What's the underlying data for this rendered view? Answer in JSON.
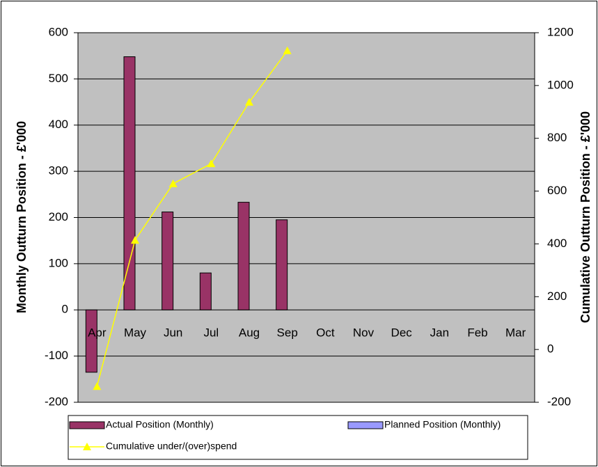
{
  "chart_data": {
    "type": "bar",
    "categories": [
      "Apr",
      "May",
      "Jun",
      "Jul",
      "Aug",
      "Sep",
      "Oct",
      "Nov",
      "Dec",
      "Jan",
      "Feb",
      "Mar"
    ],
    "y_label": "Monthly Outturn Position - £'000",
    "y2_label": "Cumulative Outturn Position - £'000",
    "ylim": [
      -200,
      600
    ],
    "yticks": [
      -200,
      -100,
      0,
      100,
      200,
      300,
      400,
      500,
      600
    ],
    "y2lim": [
      -200,
      1200
    ],
    "y2ticks": [
      -200,
      0,
      200,
      400,
      600,
      800,
      1000,
      1200
    ],
    "grid": true,
    "legend": "bottom",
    "series": [
      {
        "name": "Actual Position (Monthly)",
        "color": "#993366",
        "type": "bar",
        "values": [
          -135,
          548,
          212,
          80,
          233,
          195,
          null,
          null,
          null,
          null,
          null,
          null
        ]
      },
      {
        "name": "Planned Position (Monthly)",
        "color": "#9999ff",
        "type": "bar",
        "values": [
          null,
          null,
          null,
          null,
          null,
          null,
          null,
          null,
          null,
          null,
          null,
          null
        ]
      },
      {
        "name": "Cumulative under/(over)spend",
        "color": "#ffff00",
        "type": "line",
        "axis": "y2",
        "values": [
          -140,
          414,
          628,
          704,
          937,
          1132,
          null,
          null,
          null,
          null,
          null,
          null
        ]
      }
    ]
  }
}
